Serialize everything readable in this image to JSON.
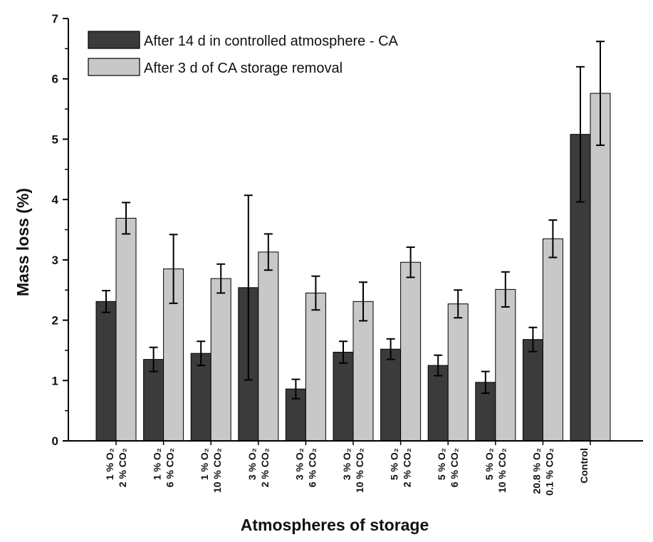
{
  "chart_data": {
    "type": "bar",
    "xlabel": "Atmospheres of storage",
    "ylabel": "Mass loss (%)",
    "ylim": [
      0,
      7
    ],
    "yticks": [
      0,
      1,
      2,
      3,
      4,
      5,
      6,
      7
    ],
    "grid": false,
    "legend_position": "top-left",
    "categories": [
      {
        "line1": "1 % O₂",
        "line2": "2 % CO₂"
      },
      {
        "line1": "1 % O₂",
        "line2": "6 % CO₂"
      },
      {
        "line1": "1 % O₂",
        "line2": "10 % CO₂"
      },
      {
        "line1": "3 % O₂",
        "line2": "2 % CO₂"
      },
      {
        "line1": "3 % O₂",
        "line2": "6 % CO₂"
      },
      {
        "line1": "3 % O₂",
        "line2": "10 % CO₂"
      },
      {
        "line1": "5 % O₂",
        "line2": "2 % CO₂"
      },
      {
        "line1": "5 % O₂",
        "line2": "6 % CO₂"
      },
      {
        "line1": "5 % O₂",
        "line2": "10 % CO₂"
      },
      {
        "line1": "20.8 % O₂",
        "line2": "0.1 % CO₂"
      },
      {
        "line1": "Control",
        "line2": ""
      }
    ],
    "series": [
      {
        "name": "After 14 d in controlled atmosphere - CA",
        "color": "#3b3b3b",
        "values": [
          2.31,
          1.35,
          1.45,
          2.54,
          0.86,
          1.47,
          1.52,
          1.25,
          0.97,
          1.68,
          5.08
        ],
        "errors": [
          0.18,
          0.2,
          0.2,
          1.53,
          0.16,
          0.18,
          0.17,
          0.17,
          0.18,
          0.2,
          1.12
        ]
      },
      {
        "name": "After 3 d of CA storage removal",
        "color": "#c8c8c8",
        "values": [
          3.69,
          2.85,
          2.69,
          3.13,
          2.45,
          2.31,
          2.96,
          2.27,
          2.51,
          3.35,
          5.76
        ],
        "errors": [
          0.26,
          0.57,
          0.24,
          0.3,
          0.28,
          0.32,
          0.25,
          0.23,
          0.29,
          0.31,
          0.86
        ]
      }
    ]
  }
}
